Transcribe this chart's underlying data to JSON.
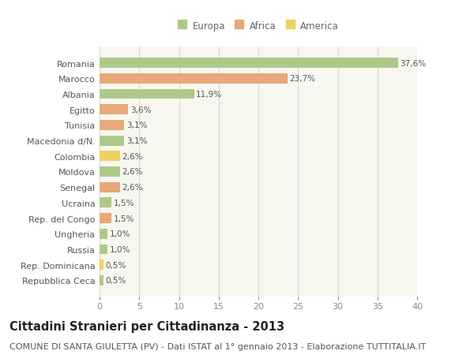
{
  "categories": [
    "Romania",
    "Marocco",
    "Albania",
    "Egitto",
    "Tunisia",
    "Macedonia d/N.",
    "Colombia",
    "Moldova",
    "Senegal",
    "Ucraina",
    "Rep. del Congo",
    "Ungheria",
    "Russia",
    "Rep. Dominicana",
    "Repubblica Ceca"
  ],
  "values": [
    37.6,
    23.7,
    11.9,
    3.6,
    3.1,
    3.1,
    2.6,
    2.6,
    2.6,
    1.5,
    1.5,
    1.0,
    1.0,
    0.5,
    0.5
  ],
  "labels": [
    "37,6%",
    "23,7%",
    "11,9%",
    "3,6%",
    "3,1%",
    "3,1%",
    "2,6%",
    "2,6%",
    "2,6%",
    "1,5%",
    "1,5%",
    "1,0%",
    "1,0%",
    "0,5%",
    "0,5%"
  ],
  "colors": [
    "#adc98a",
    "#e8a878",
    "#adc98a",
    "#e8a878",
    "#e8a878",
    "#adc98a",
    "#f0d060",
    "#adc98a",
    "#e8a878",
    "#adc98a",
    "#e8a878",
    "#adc98a",
    "#adc98a",
    "#f0d060",
    "#adc98a"
  ],
  "legend_labels": [
    "Europa",
    "Africa",
    "America"
  ],
  "legend_colors": [
    "#adc98a",
    "#e8a878",
    "#f0d060"
  ],
  "title": "Cittadini Stranieri per Cittadinanza - 2013",
  "subtitle": "COMUNE DI SANTA GIULETTA (PV) - Dati ISTAT al 1° gennaio 2013 - Elaborazione TUTTITALIA.IT",
  "xlim": [
    0,
    40
  ],
  "xticks": [
    0,
    5,
    10,
    15,
    20,
    25,
    30,
    35,
    40
  ],
  "background_color": "#ffffff",
  "plot_bg_color": "#f7f7f0",
  "grid_color": "#d8d8d0",
  "bar_height": 0.65,
  "title_fontsize": 10.5,
  "subtitle_fontsize": 8,
  "label_fontsize": 7.5,
  "tick_fontsize": 8,
  "legend_fontsize": 8.5
}
